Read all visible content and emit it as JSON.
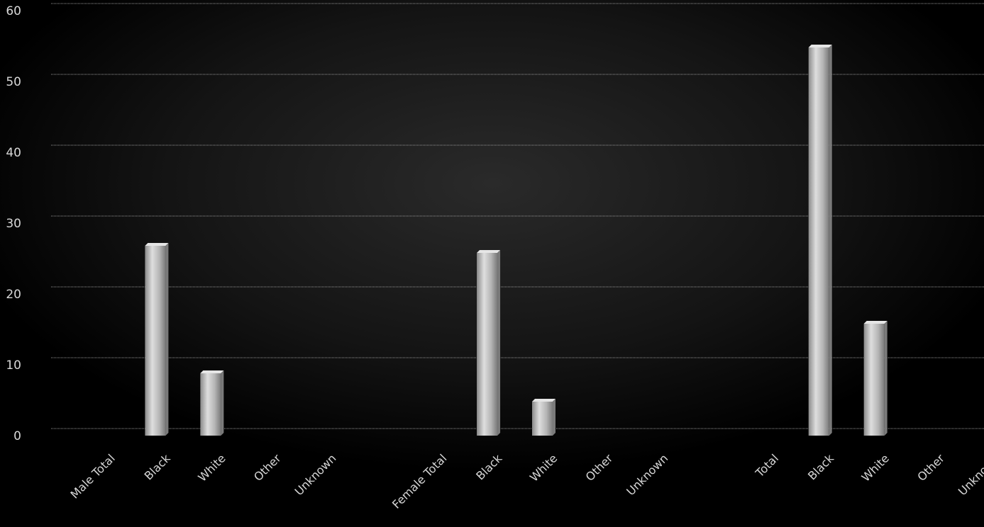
{
  "chart_data": {
    "type": "bar",
    "title": "",
    "xlabel": "",
    "ylabel": "",
    "categories": [
      "Male Total",
      "Black",
      "White",
      "Other",
      "Unknown",
      "Female Total",
      "Black",
      "White",
      "Other",
      "Unknown",
      "Total",
      "Black",
      "White",
      "Other",
      "Unknown"
    ],
    "values": [
      0,
      29,
      11,
      0,
      0,
      0,
      28,
      7,
      0,
      0,
      0,
      57,
      18,
      0,
      0
    ],
    "ylim": [
      0,
      60
    ],
    "yticks": [
      0,
      10,
      20,
      30,
      40,
      50,
      60
    ],
    "grid": true,
    "legend": "none",
    "colors": {
      "background": "#000000",
      "bar": "#bdbdbd",
      "bar_highlight": "#e6e6e6",
      "bar_shadow": "#7a7a7a",
      "gridline": "#9a9a9a",
      "text": "#d8d8d8"
    }
  }
}
